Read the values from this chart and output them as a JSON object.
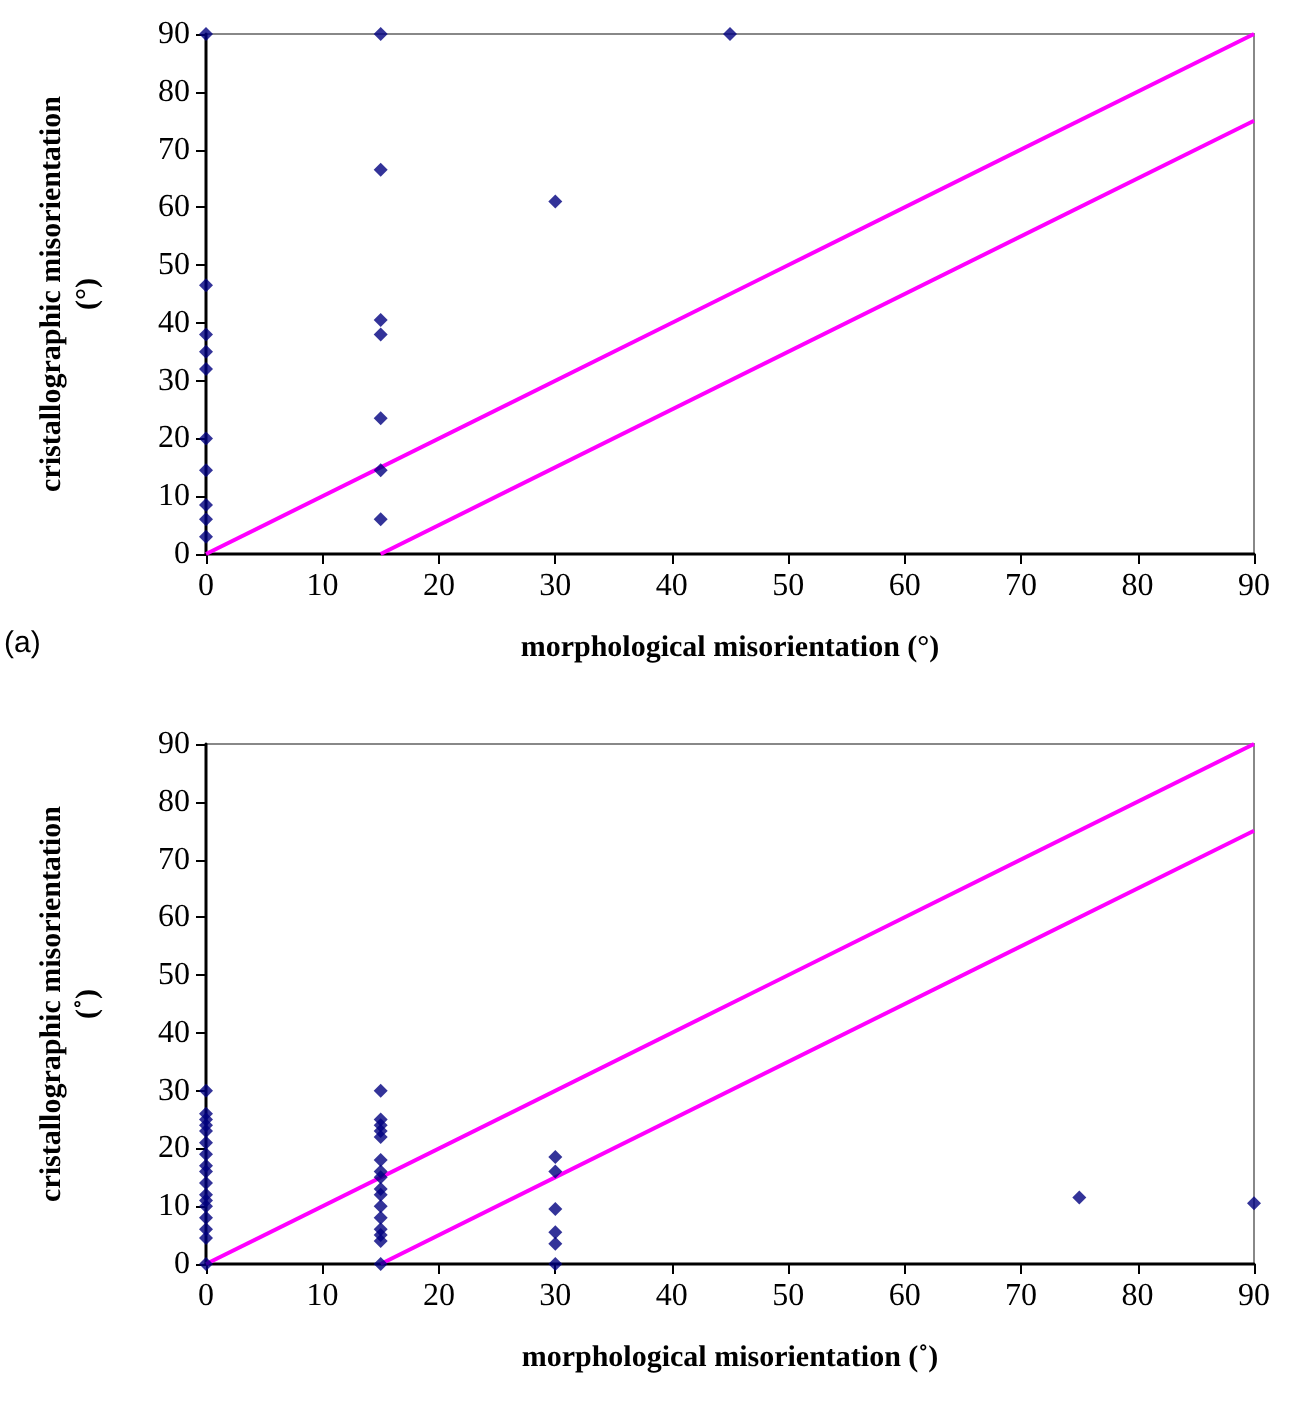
{
  "chart_data": [
    {
      "type": "scatter",
      "xlabel": "morphological misorientation (°)",
      "ylabel": "cristallographic misorientation\n(°)",
      "annotations": [
        "(a)"
      ],
      "xlim": [
        0,
        90
      ],
      "ylim": [
        0,
        90
      ],
      "xticks": [
        0,
        10,
        20,
        30,
        40,
        50,
        60,
        70,
        80,
        90
      ],
      "yticks": [
        0,
        10,
        20,
        30,
        40,
        50,
        60,
        70,
        80,
        90
      ],
      "grid": false,
      "line_style": "solid",
      "series": [
        {
          "marker": "diamond",
          "color": "#000080",
          "x": [
            0,
            0,
            0,
            0,
            0,
            0,
            0,
            0,
            0,
            0,
            15,
            15,
            15,
            15,
            15,
            15,
            15,
            30,
            45
          ],
          "values": [
            90,
            46.5,
            38,
            35,
            32,
            20,
            14.5,
            8.5,
            6,
            3,
            90,
            66.5,
            40.5,
            38,
            23.5,
            14.5,
            6,
            61,
            90
          ]
        },
        {
          "type": "line",
          "color": "#ff00ff",
          "x": [
            0,
            90
          ],
          "values": [
            0,
            90
          ]
        },
        {
          "type": "line",
          "color": "#ff00ff",
          "x": [
            15,
            90
          ],
          "values": [
            0,
            75
          ]
        }
      ]
    },
    {
      "type": "scatter",
      "xlabel": "morphological misorientation (˚)",
      "ylabel": "cristallographic misorientation\n(˚)",
      "xlim": [
        0,
        90
      ],
      "ylim": [
        0,
        90
      ],
      "xticks": [
        0,
        10,
        20,
        30,
        40,
        50,
        60,
        70,
        80,
        90
      ],
      "yticks": [
        0,
        10,
        20,
        30,
        40,
        50,
        60,
        70,
        80,
        90
      ],
      "grid": false,
      "line_style": "solid",
      "series": [
        {
          "marker": "diamond",
          "color": "#000080",
          "x": [
            0,
            0,
            0,
            0,
            0,
            0,
            0,
            0,
            0,
            0,
            0,
            0,
            0,
            0,
            0,
            0,
            0,
            15,
            15,
            15,
            15,
            15,
            15,
            15,
            15,
            15,
            15,
            15,
            15,
            15,
            15,
            15,
            15,
            30,
            30,
            30,
            30,
            30,
            30,
            75,
            90
          ],
          "values": [
            30,
            26,
            25,
            24,
            23,
            21,
            19,
            17,
            16,
            14,
            12,
            11,
            10,
            8,
            6,
            4.5,
            0,
            30,
            25,
            24,
            23,
            22,
            18,
            16,
            15,
            13,
            12,
            10,
            8,
            6,
            5,
            4,
            0,
            18.5,
            16,
            9.5,
            5.5,
            3.5,
            0,
            11.5,
            10.5
          ]
        },
        {
          "type": "line",
          "color": "#ff00ff",
          "x": [
            0,
            90
          ],
          "values": [
            0,
            90
          ]
        },
        {
          "type": "line",
          "color": "#ff00ff",
          "x": [
            15,
            90
          ],
          "values": [
            0,
            75
          ]
        }
      ]
    }
  ]
}
